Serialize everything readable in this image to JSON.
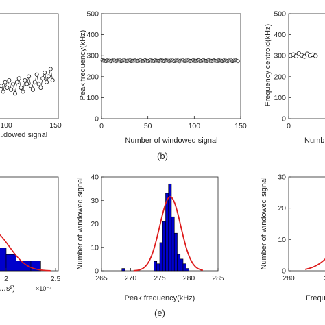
{
  "chart_data": [
    {
      "id": "a",
      "type": "line",
      "panel_label": "",
      "xlabel": "…dowed signal",
      "ylabel": "",
      "xticks": [
        "100",
        "150"
      ],
      "xlim": [
        0,
        150
      ],
      "series": [
        {
          "x": [
            95,
            97,
            99,
            101,
            103,
            105,
            107,
            109,
            111,
            113,
            115,
            117,
            119,
            121,
            123,
            125,
            127,
            129,
            131,
            133,
            135,
            137,
            139,
            141,
            143,
            145,
            147
          ],
          "values": [
            0.45,
            0.3,
            0.55,
            0.4,
            0.6,
            0.35,
            0.5,
            0.25,
            0.55,
            0.65,
            0.4,
            0.3,
            0.6,
            0.5,
            0.7,
            0.45,
            0.35,
            0.55,
            0.75,
            0.5,
            0.4,
            0.65,
            0.8,
            0.55,
            0.7,
            0.9,
            0.6
          ]
        }
      ]
    },
    {
      "id": "b",
      "type": "line",
      "panel_label": "(b)",
      "xlabel": "Number of windowed signal",
      "ylabel": "Peak frequency(kHz)",
      "xticks": [
        "0",
        "50",
        "100",
        "150"
      ],
      "yticks": [
        "0",
        "100",
        "200",
        "300",
        "400",
        "500"
      ],
      "xlim": [
        0,
        150
      ],
      "ylim": [
        0,
        500
      ],
      "series": [
        {
          "x_start": 1,
          "x_end": 147,
          "mean": 276,
          "amplitude": 3
        }
      ]
    },
    {
      "id": "c",
      "type": "line",
      "panel_label": "",
      "xlabel": "Numb…",
      "ylabel": "Frequency centroid(kHz)",
      "xticks": [
        "0"
      ],
      "yticks": [
        "0",
        "100",
        "200",
        "300",
        "400",
        "500"
      ],
      "ylim": [
        0,
        500
      ],
      "series": [
        {
          "x": [
            2,
            5,
            8,
            11,
            14,
            17,
            20,
            23,
            26,
            29
          ],
          "values": [
            300,
            305,
            298,
            310,
            302,
            296,
            308,
            300,
            304,
            299
          ]
        }
      ]
    },
    {
      "id": "d",
      "type": "bar",
      "panel_label": "",
      "xlabel": "…s²)",
      "xticks": [
        "2",
        "2.5"
      ],
      "x_exponent": "×10⁻⁴",
      "bins": [
        [
          1.85,
          1.9,
          5
        ],
        [
          1.9,
          2.0,
          3.5
        ],
        [
          2.0,
          2.1,
          2.5
        ],
        [
          2.1,
          2.25,
          1.5
        ],
        [
          2.25,
          2.35,
          1.5
        ]
      ],
      "fit": "gaussian"
    },
    {
      "id": "e",
      "type": "bar",
      "panel_label": "(e)",
      "xlabel": "Peak frequency(kHz)",
      "ylabel": "Number of windowed signal",
      "xticks": [
        "265",
        "270",
        "275",
        "280",
        "285"
      ],
      "yticks": [
        "0",
        "10",
        "20",
        "30",
        "40"
      ],
      "xlim": [
        265,
        285
      ],
      "ylim": [
        0,
        40
      ],
      "bins": [
        [
          268.5,
          269.0,
          1
        ],
        [
          274.0,
          274.5,
          4
        ],
        [
          274.5,
          275.0,
          3
        ],
        [
          275.0,
          275.5,
          12
        ],
        [
          275.5,
          276.0,
          21
        ],
        [
          276.0,
          276.5,
          33
        ],
        [
          276.5,
          277.0,
          37
        ],
        [
          277.0,
          277.5,
          23
        ],
        [
          277.5,
          278.0,
          16
        ],
        [
          278.0,
          278.5,
          7
        ],
        [
          278.5,
          279.0,
          5
        ],
        [
          279.0,
          279.5,
          3
        ],
        [
          279.5,
          280.0,
          1
        ]
      ],
      "fit": {
        "type": "gaussian",
        "mean": 276.8,
        "sigma": 1.8,
        "peak": 31.5
      }
    },
    {
      "id": "f",
      "type": "bar",
      "panel_label": "",
      "xlabel": "Frequ…",
      "ylabel": "Number of windowed signal",
      "xticks": [
        "280",
        "290"
      ],
      "yticks": [
        "0",
        "10",
        "20",
        "30"
      ],
      "xlim": [
        280,
        310
      ],
      "ylim": [
        0,
        30
      ],
      "bins": [
        [
          290,
          292,
          2.5
        ],
        [
          292,
          294,
          1.8
        ]
      ],
      "fit": {
        "type": "gaussian",
        "mean": 297,
        "sigma": 5,
        "peak": 14
      }
    }
  ],
  "colors": {
    "bar_fill": "#0000cc",
    "bar_edge": "#000000",
    "fit_line": "#dd1c1c",
    "marker_edge": "#1a1a1a"
  }
}
